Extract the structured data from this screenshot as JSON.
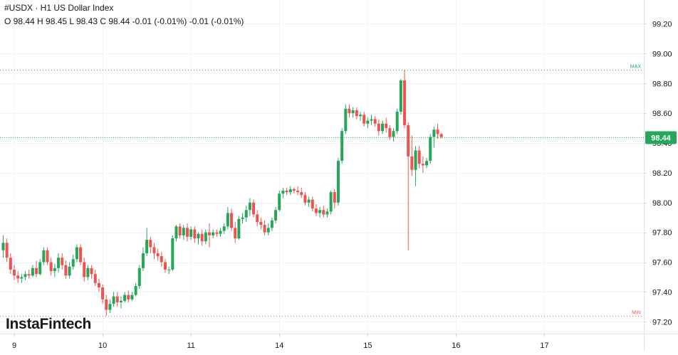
{
  "header": {
    "title": "#USDX · H1 US Dollar Index",
    "ohlc": "O 98.44 H 98.45 L 98.43 C 98.44 -0.01 (-0.01%) -0.01 (-0.01%)"
  },
  "logo": "InstaFintech",
  "colors": {
    "up": "#26a65b",
    "down": "#ef5350",
    "max_line": "#26a65b",
    "min_line": "#ef5350"
  },
  "chart_data": {
    "type": "candlestick",
    "title": "#USDX · H1 US Dollar Index",
    "y_ticks": [
      "99.20",
      "99.00",
      "98.80",
      "98.60",
      "98.40",
      "98.20",
      "98.00",
      "97.80",
      "97.60",
      "97.40",
      "97.20"
    ],
    "ylim": [
      97.12,
      99.36
    ],
    "x_ticks": [
      "9",
      "10",
      "11",
      "14",
      "15",
      "16",
      "17"
    ],
    "x_tick_index": [
      3,
      27,
      51,
      75,
      99,
      123,
      147
    ],
    "last_price": "98.44",
    "max_label": "MAX",
    "max_value": 98.89,
    "min_label": "MIN",
    "min_value": 97.24,
    "grid": true,
    "candles": [
      [
        97.68,
        97.78,
        97.63,
        97.73
      ],
      [
        97.73,
        97.76,
        97.6,
        97.63
      ],
      [
        97.63,
        97.66,
        97.52,
        97.55
      ],
      [
        97.55,
        97.58,
        97.48,
        97.51
      ],
      [
        97.51,
        97.54,
        97.46,
        97.49
      ],
      [
        97.49,
        97.52,
        97.46,
        97.5
      ],
      [
        97.5,
        97.54,
        97.48,
        97.52
      ],
      [
        97.52,
        97.55,
        97.49,
        97.51
      ],
      [
        97.51,
        97.58,
        97.5,
        97.56
      ],
      [
        97.56,
        97.61,
        97.5,
        97.52
      ],
      [
        97.52,
        97.62,
        97.51,
        97.6
      ],
      [
        97.6,
        97.7,
        97.58,
        97.68
      ],
      [
        97.68,
        97.7,
        97.58,
        97.6
      ],
      [
        97.6,
        97.63,
        97.51,
        97.54
      ],
      [
        97.54,
        97.59,
        97.5,
        97.56
      ],
      [
        97.56,
        97.66,
        97.53,
        97.63
      ],
      [
        97.63,
        97.66,
        97.55,
        97.58
      ],
      [
        97.58,
        97.61,
        97.49,
        97.51
      ],
      [
        97.51,
        97.6,
        97.49,
        97.57
      ],
      [
        97.57,
        97.65,
        97.55,
        97.62
      ],
      [
        97.62,
        97.72,
        97.6,
        97.7
      ],
      [
        97.7,
        97.72,
        97.58,
        97.6
      ],
      [
        97.6,
        97.63,
        97.47,
        97.5
      ],
      [
        97.5,
        97.58,
        97.48,
        97.56
      ],
      [
        97.56,
        97.58,
        97.49,
        97.52
      ],
      [
        97.52,
        97.55,
        97.44,
        97.46
      ],
      [
        97.46,
        97.49,
        97.4,
        97.43
      ],
      [
        97.43,
        97.45,
        97.32,
        97.35
      ],
      [
        97.35,
        97.38,
        97.24,
        97.28
      ],
      [
        97.28,
        97.35,
        97.26,
        97.32
      ],
      [
        97.32,
        97.4,
        97.3,
        97.37
      ],
      [
        97.37,
        97.4,
        97.3,
        97.33
      ],
      [
        97.33,
        97.37,
        97.29,
        97.34
      ],
      [
        97.34,
        97.4,
        97.33,
        97.38
      ],
      [
        97.38,
        97.41,
        97.33,
        97.35
      ],
      [
        97.35,
        97.4,
        97.34,
        97.38
      ],
      [
        97.38,
        97.46,
        97.37,
        97.44
      ],
      [
        97.44,
        97.58,
        97.42,
        97.56
      ],
      [
        97.56,
        97.7,
        97.54,
        97.66
      ],
      [
        97.66,
        97.83,
        97.64,
        97.75
      ],
      [
        97.75,
        97.77,
        97.66,
        97.7
      ],
      [
        97.7,
        97.73,
        97.62,
        97.66
      ],
      [
        97.66,
        97.69,
        97.61,
        97.64
      ],
      [
        97.64,
        97.67,
        97.57,
        97.6
      ],
      [
        97.6,
        97.62,
        97.53,
        97.55
      ],
      [
        97.55,
        97.57,
        97.52,
        97.55
      ],
      [
        97.55,
        97.78,
        97.54,
        97.76
      ],
      [
        97.76,
        97.85,
        97.74,
        97.84
      ],
      [
        97.84,
        97.86,
        97.76,
        97.78
      ],
      [
        97.78,
        97.85,
        97.75,
        97.83
      ],
      [
        97.83,
        97.86,
        97.74,
        97.77
      ],
      [
        97.77,
        97.84,
        97.75,
        97.82
      ],
      [
        97.82,
        97.84,
        97.73,
        97.76
      ],
      [
        97.76,
        97.8,
        97.72,
        97.79
      ],
      [
        97.79,
        97.82,
        97.71,
        97.74
      ],
      [
        97.74,
        97.82,
        97.72,
        97.8
      ],
      [
        97.8,
        97.86,
        97.7,
        97.78
      ],
      [
        97.78,
        97.82,
        97.76,
        97.8
      ],
      [
        97.8,
        97.82,
        97.77,
        97.79
      ],
      [
        97.79,
        97.83,
        97.77,
        97.81
      ],
      [
        97.81,
        97.86,
        97.79,
        97.84
      ],
      [
        97.84,
        97.97,
        97.82,
        97.93
      ],
      [
        97.93,
        97.96,
        97.81,
        97.83
      ],
      [
        97.83,
        97.87,
        97.73,
        97.76
      ],
      [
        97.76,
        97.91,
        97.75,
        97.89
      ],
      [
        97.89,
        97.93,
        97.86,
        97.9
      ],
      [
        97.9,
        97.98,
        97.87,
        97.95
      ],
      [
        97.95,
        98.03,
        97.91,
        98.0
      ],
      [
        98.0,
        98.02,
        97.9,
        97.92
      ],
      [
        97.92,
        97.95,
        97.84,
        97.87
      ],
      [
        97.87,
        97.9,
        97.82,
        97.85
      ],
      [
        97.85,
        97.88,
        97.78,
        97.8
      ],
      [
        97.8,
        97.86,
        97.78,
        97.83
      ],
      [
        97.83,
        97.9,
        97.81,
        97.88
      ],
      [
        97.88,
        97.97,
        97.86,
        97.95
      ],
      [
        97.95,
        98.08,
        97.94,
        98.06
      ],
      [
        98.06,
        98.1,
        98.03,
        98.08
      ],
      [
        98.08,
        98.1,
        98.05,
        98.07
      ],
      [
        98.07,
        98.11,
        98.05,
        98.09
      ],
      [
        98.09,
        98.1,
        98.06,
        98.08
      ],
      [
        98.08,
        98.11,
        98.05,
        98.07
      ],
      [
        98.07,
        98.1,
        98.03,
        98.05
      ],
      [
        98.05,
        98.07,
        97.98,
        98.0
      ],
      [
        98.0,
        98.04,
        97.97,
        98.02
      ],
      [
        98.02,
        98.04,
        97.94,
        97.96
      ],
      [
        97.96,
        97.99,
        97.91,
        97.93
      ],
      [
        97.93,
        97.97,
        97.9,
        97.95
      ],
      [
        97.95,
        97.98,
        97.9,
        97.92
      ],
      [
        97.92,
        97.96,
        97.9,
        97.94
      ],
      [
        97.94,
        98.08,
        97.92,
        98.07
      ],
      [
        98.07,
        98.09,
        97.96,
        98.0
      ],
      [
        98.0,
        98.3,
        97.98,
        98.28
      ],
      [
        98.28,
        98.5,
        98.26,
        98.48
      ],
      [
        98.48,
        98.66,
        98.46,
        98.63
      ],
      [
        98.63,
        98.66,
        98.57,
        98.6
      ],
      [
        98.6,
        98.64,
        98.57,
        98.62
      ],
      [
        98.62,
        98.64,
        98.56,
        98.58
      ],
      [
        98.58,
        98.61,
        98.55,
        98.59
      ],
      [
        98.59,
        98.61,
        98.51,
        98.53
      ],
      [
        98.53,
        98.57,
        98.5,
        98.55
      ],
      [
        98.55,
        98.59,
        98.52,
        98.56
      ],
      [
        98.56,
        98.58,
        98.51,
        98.53
      ],
      [
        98.53,
        98.56,
        98.45,
        98.48
      ],
      [
        98.48,
        98.55,
        98.46,
        98.53
      ],
      [
        98.53,
        98.57,
        98.47,
        98.5
      ],
      [
        98.5,
        98.52,
        98.42,
        98.44
      ],
      [
        98.44,
        98.5,
        98.41,
        98.48
      ],
      [
        98.48,
        98.63,
        98.46,
        98.61
      ],
      [
        98.61,
        98.83,
        98.59,
        98.82
      ],
      [
        98.82,
        98.89,
        98.5,
        98.52
      ],
      [
        98.52,
        98.54,
        97.68,
        98.31
      ],
      [
        98.31,
        98.45,
        98.18,
        98.22
      ],
      [
        98.22,
        98.38,
        98.11,
        98.35
      ],
      [
        98.35,
        98.38,
        98.23,
        98.26
      ],
      [
        98.26,
        98.31,
        98.2,
        98.25
      ],
      [
        98.25,
        98.3,
        98.23,
        98.28
      ],
      [
        98.28,
        98.46,
        98.26,
        98.44
      ],
      [
        98.44,
        98.51,
        98.37,
        98.49
      ],
      [
        98.49,
        98.53,
        98.43,
        98.46
      ],
      [
        98.46,
        98.47,
        98.43,
        98.44
      ]
    ]
  }
}
